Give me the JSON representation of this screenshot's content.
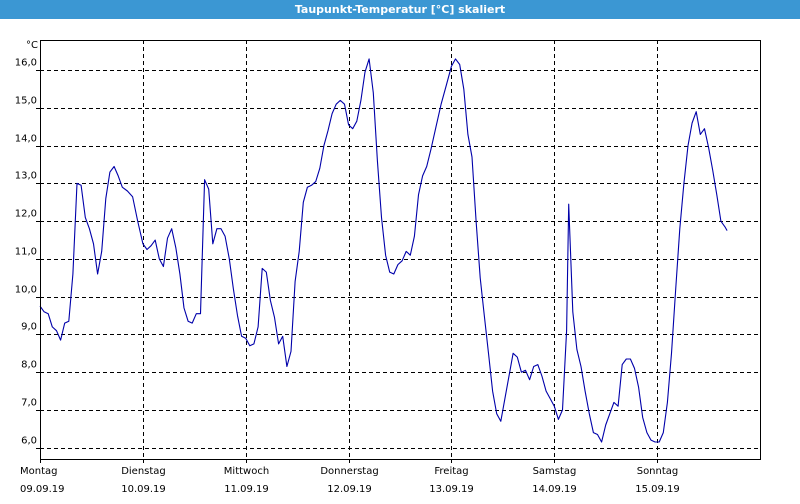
{
  "chart_data": {
    "type": "line",
    "title": "Taupunkt-Temperatur [°C] skaliert",
    "ylabel": "°C",
    "ylim": [
      5.7,
      16.8
    ],
    "y_ticks": [
      6.0,
      7.0,
      8.0,
      9.0,
      10.0,
      11.0,
      12.0,
      13.0,
      14.0,
      15.0,
      16.0
    ],
    "y_tick_labels": [
      "6,0",
      "7,0",
      "8,0",
      "9,0",
      "10,0",
      "11,0",
      "12,0",
      "13,0",
      "14,0",
      "15,0",
      "16,0"
    ],
    "x_range_days": [
      0,
      7
    ],
    "x_ticks": [
      {
        "day": "Montag",
        "date": "09.09.19"
      },
      {
        "day": "Dienstag",
        "date": "10.09.19"
      },
      {
        "day": "Mittwoch",
        "date": "11.09.19"
      },
      {
        "day": "Donnerstag",
        "date": "12.09.19"
      },
      {
        "day": "Freitag",
        "date": "13.09.19"
      },
      {
        "day": "Samstag",
        "date": "14.09.19"
      },
      {
        "day": "Sonntag",
        "date": "15.09.19"
      }
    ],
    "grid": true,
    "line_color": "#0000aa",
    "series": [
      {
        "name": "",
        "values": [
          [
            0.0,
            9.75
          ],
          [
            0.04,
            9.6
          ],
          [
            0.08,
            9.55
          ],
          [
            0.12,
            9.2
          ],
          [
            0.16,
            9.1
          ],
          [
            0.2,
            8.85
          ],
          [
            0.24,
            9.3
          ],
          [
            0.28,
            9.35
          ],
          [
            0.32,
            10.6
          ],
          [
            0.36,
            13.0
          ],
          [
            0.4,
            12.95
          ],
          [
            0.44,
            12.1
          ],
          [
            0.48,
            11.8
          ],
          [
            0.52,
            11.4
          ],
          [
            0.56,
            10.6
          ],
          [
            0.6,
            11.2
          ],
          [
            0.64,
            12.6
          ],
          [
            0.68,
            13.3
          ],
          [
            0.72,
            13.45
          ],
          [
            0.76,
            13.2
          ],
          [
            0.8,
            12.9
          ],
          [
            0.85,
            12.8
          ],
          [
            0.9,
            12.65
          ],
          [
            0.95,
            12.0
          ],
          [
            1.0,
            11.4
          ],
          [
            1.04,
            11.25
          ],
          [
            1.08,
            11.35
          ],
          [
            1.12,
            11.5
          ],
          [
            1.16,
            11.0
          ],
          [
            1.2,
            10.8
          ],
          [
            1.24,
            11.55
          ],
          [
            1.28,
            11.8
          ],
          [
            1.32,
            11.3
          ],
          [
            1.36,
            10.6
          ],
          [
            1.4,
            9.7
          ],
          [
            1.44,
            9.35
          ],
          [
            1.48,
            9.3
          ],
          [
            1.52,
            9.55
          ],
          [
            1.56,
            9.55
          ],
          [
            1.6,
            13.1
          ],
          [
            1.64,
            12.85
          ],
          [
            1.68,
            11.4
          ],
          [
            1.72,
            11.8
          ],
          [
            1.76,
            11.8
          ],
          [
            1.8,
            11.6
          ],
          [
            1.84,
            11.0
          ],
          [
            1.88,
            10.2
          ],
          [
            1.92,
            9.5
          ],
          [
            1.96,
            8.95
          ],
          [
            2.0,
            8.9
          ],
          [
            2.04,
            8.7
          ],
          [
            2.08,
            8.75
          ],
          [
            2.12,
            9.2
          ],
          [
            2.16,
            10.75
          ],
          [
            2.2,
            10.65
          ],
          [
            2.24,
            9.9
          ],
          [
            2.28,
            9.45
          ],
          [
            2.32,
            8.75
          ],
          [
            2.36,
            8.95
          ],
          [
            2.4,
            8.15
          ],
          [
            2.44,
            8.55
          ],
          [
            2.48,
            10.4
          ],
          [
            2.52,
            11.2
          ],
          [
            2.56,
            12.5
          ],
          [
            2.6,
            12.9
          ],
          [
            2.64,
            12.95
          ],
          [
            2.68,
            13.05
          ],
          [
            2.72,
            13.4
          ],
          [
            2.76,
            14.0
          ],
          [
            2.8,
            14.4
          ],
          [
            2.84,
            14.85
          ],
          [
            2.88,
            15.1
          ],
          [
            2.92,
            15.2
          ],
          [
            2.96,
            15.1
          ],
          [
            3.0,
            14.55
          ],
          [
            3.04,
            14.45
          ],
          [
            3.08,
            14.65
          ],
          [
            3.12,
            15.2
          ],
          [
            3.16,
            15.95
          ],
          [
            3.2,
            16.3
          ],
          [
            3.24,
            15.4
          ],
          [
            3.28,
            13.6
          ],
          [
            3.32,
            12.1
          ],
          [
            3.36,
            11.1
          ],
          [
            3.4,
            10.65
          ],
          [
            3.44,
            10.6
          ],
          [
            3.48,
            10.85
          ],
          [
            3.52,
            10.95
          ],
          [
            3.56,
            11.2
          ],
          [
            3.6,
            11.1
          ],
          [
            3.64,
            11.6
          ],
          [
            3.68,
            12.7
          ],
          [
            3.72,
            13.2
          ],
          [
            3.76,
            13.45
          ],
          [
            3.8,
            13.9
          ],
          [
            3.85,
            14.5
          ],
          [
            3.9,
            15.1
          ],
          [
            3.95,
            15.6
          ],
          [
            4.0,
            16.1
          ],
          [
            4.04,
            16.3
          ],
          [
            4.08,
            16.15
          ],
          [
            4.12,
            15.5
          ],
          [
            4.16,
            14.3
          ],
          [
            4.2,
            13.7
          ],
          [
            4.24,
            12.0
          ],
          [
            4.28,
            10.5
          ],
          [
            4.32,
            9.5
          ],
          [
            4.36,
            8.5
          ],
          [
            4.4,
            7.5
          ],
          [
            4.44,
            6.9
          ],
          [
            4.48,
            6.7
          ],
          [
            4.52,
            7.3
          ],
          [
            4.56,
            7.9
          ],
          [
            4.6,
            8.5
          ],
          [
            4.64,
            8.4
          ],
          [
            4.68,
            8.0
          ],
          [
            4.72,
            8.05
          ],
          [
            4.76,
            7.8
          ],
          [
            4.8,
            8.15
          ],
          [
            4.84,
            8.2
          ],
          [
            4.88,
            7.9
          ],
          [
            4.92,
            7.5
          ],
          [
            4.96,
            7.3
          ],
          [
            5.0,
            7.1
          ],
          [
            5.04,
            6.75
          ],
          [
            5.08,
            7.0
          ],
          [
            5.12,
            9.1
          ],
          [
            5.14,
            12.45
          ],
          [
            5.18,
            9.6
          ],
          [
            5.22,
            8.6
          ],
          [
            5.26,
            8.15
          ],
          [
            5.3,
            7.5
          ],
          [
            5.34,
            6.9
          ],
          [
            5.38,
            6.4
          ],
          [
            5.42,
            6.35
          ],
          [
            5.46,
            6.15
          ],
          [
            5.5,
            6.6
          ],
          [
            5.54,
            6.9
          ],
          [
            5.58,
            7.2
          ],
          [
            5.62,
            7.1
          ],
          [
            5.66,
            8.2
          ],
          [
            5.7,
            8.35
          ],
          [
            5.74,
            8.35
          ],
          [
            5.78,
            8.1
          ],
          [
            5.82,
            7.6
          ],
          [
            5.86,
            6.8
          ],
          [
            5.9,
            6.4
          ],
          [
            5.94,
            6.2
          ],
          [
            5.98,
            6.15
          ],
          [
            6.02,
            6.15
          ],
          [
            6.06,
            6.4
          ],
          [
            6.1,
            7.2
          ],
          [
            6.14,
            8.5
          ],
          [
            6.18,
            10.2
          ],
          [
            6.22,
            11.8
          ],
          [
            6.26,
            13.0
          ],
          [
            6.3,
            14.0
          ],
          [
            6.34,
            14.6
          ],
          [
            6.38,
            14.9
          ],
          [
            6.42,
            14.3
          ],
          [
            6.46,
            14.45
          ],
          [
            6.5,
            13.95
          ],
          [
            6.54,
            13.35
          ],
          [
            6.58,
            12.7
          ],
          [
            6.62,
            12.0
          ],
          [
            6.66,
            11.85
          ],
          [
            6.68,
            11.75
          ]
        ]
      }
    ]
  }
}
